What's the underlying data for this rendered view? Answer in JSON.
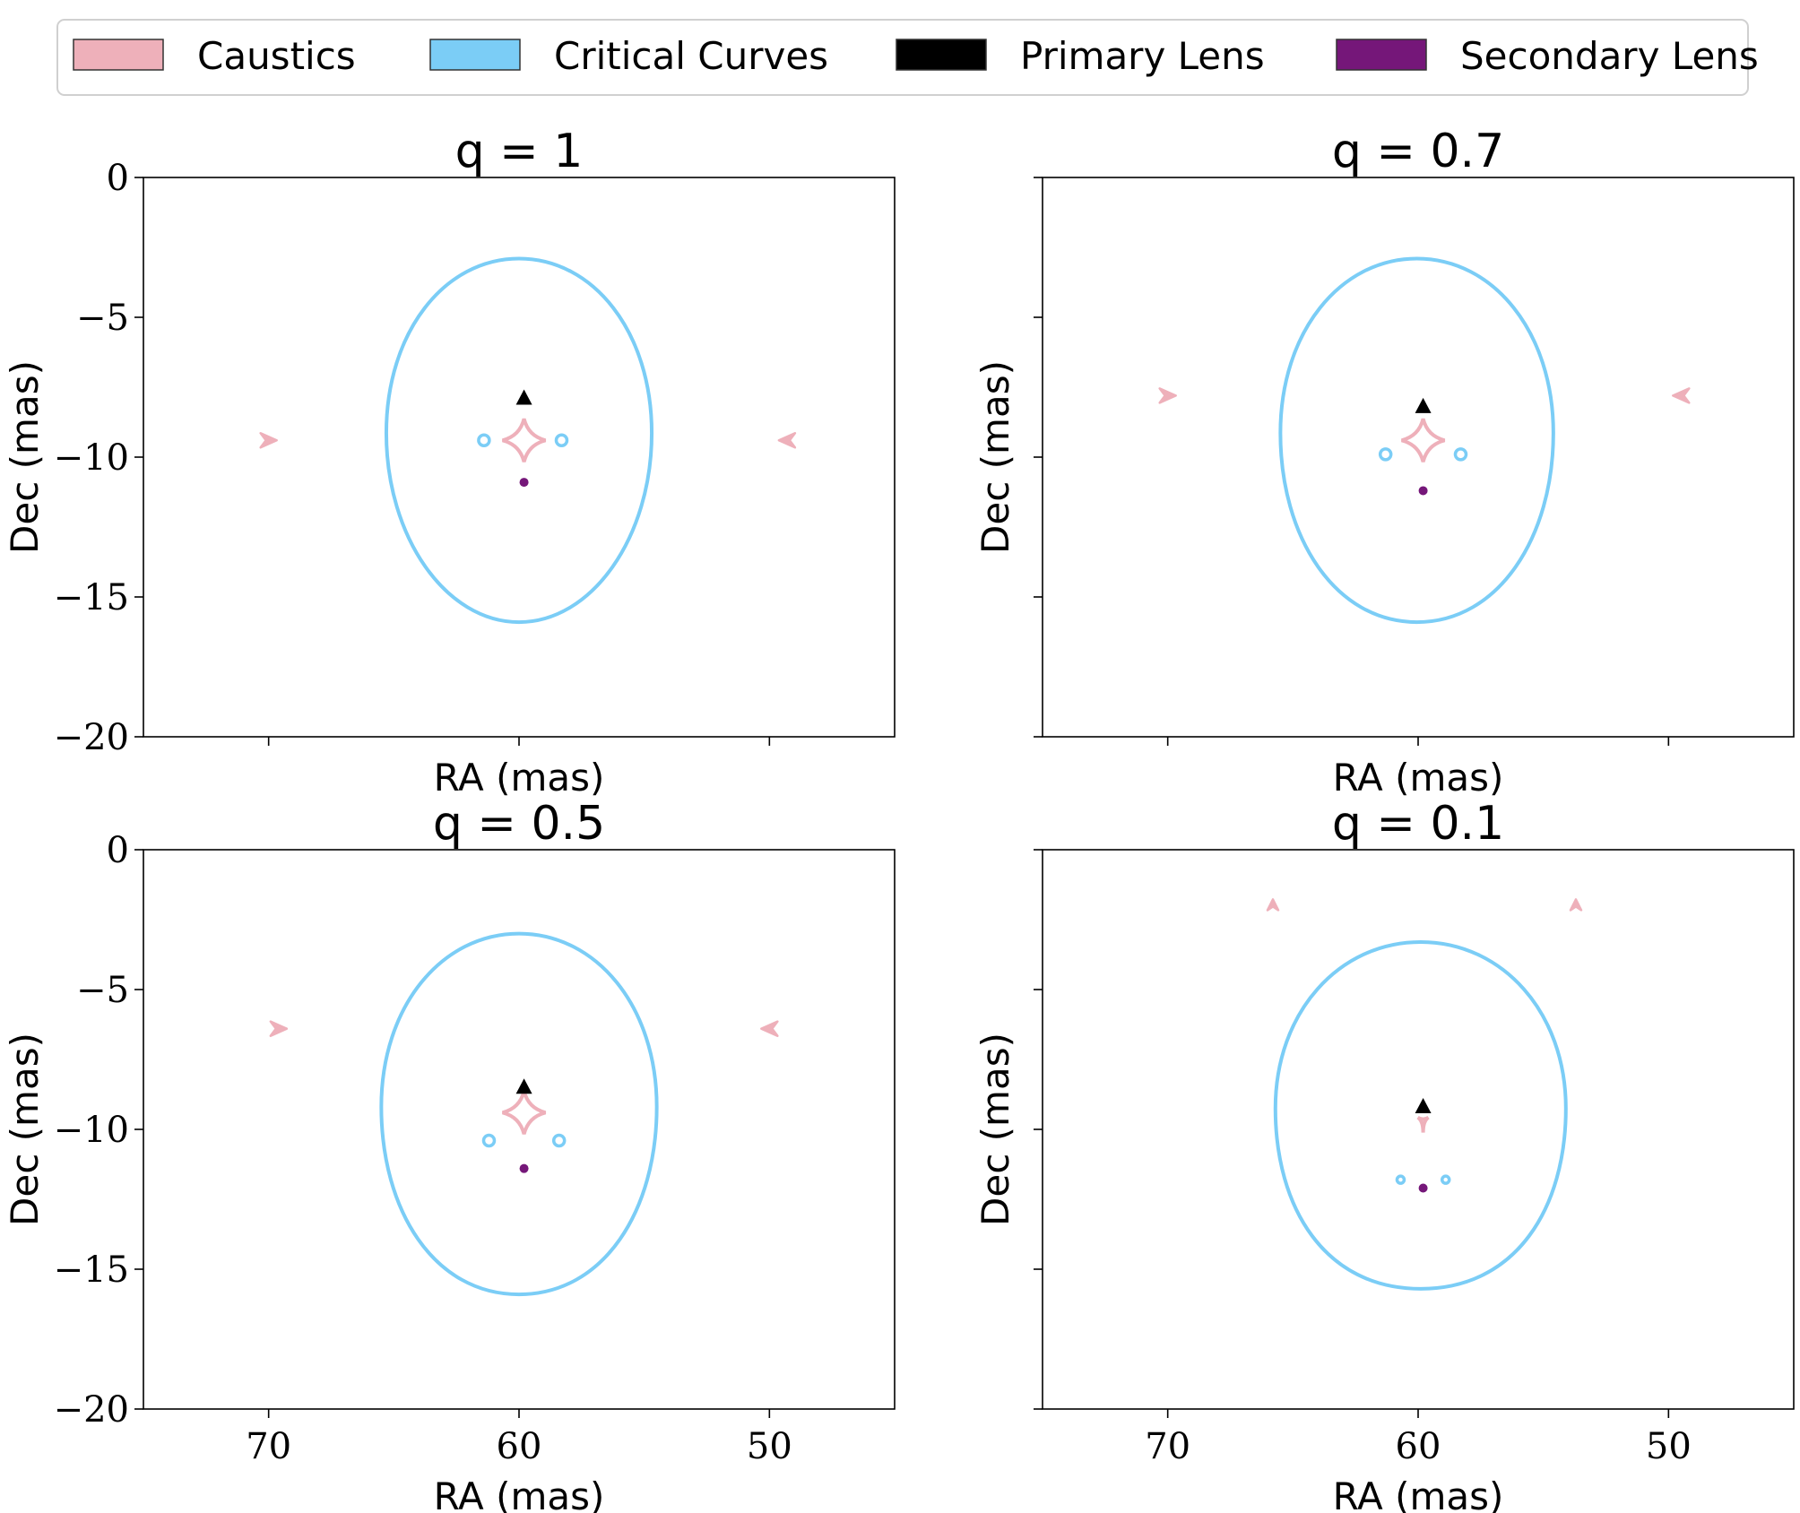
{
  "legend": {
    "items": [
      {
        "label": "Caustics",
        "color": "#EEB0BA",
        "kind": "caustics"
      },
      {
        "label": "Critical Curves",
        "color": "#7BCDF6",
        "kind": "critical"
      },
      {
        "label": "Primary Lens",
        "color": "#000000",
        "kind": "primary"
      },
      {
        "label": "Secondary Lens",
        "color": "#751779",
        "kind": "secondary"
      }
    ]
  },
  "chart_data": [
    {
      "type": "scatter",
      "title": "q = 1",
      "xlabel": "RA (mas)",
      "ylabel": "Dec (mas)",
      "xlim": [
        75,
        45
      ],
      "ylim": [
        -20,
        0
      ],
      "xticks": [
        70,
        60,
        50
      ],
      "yticks": [
        0,
        -5,
        -10,
        -15,
        -20
      ],
      "show_xticklabels": false,
      "show_yticklabels": true,
      "primary_lens": [
        59.8,
        -7.9
      ],
      "secondary_lens": [
        59.8,
        -10.9
      ],
      "critical_curve": {
        "x_range": [
          54.7,
          65.3
        ],
        "y_range": [
          -15.9,
          -2.9
        ],
        "lower_width_ratio": 0.55
      },
      "critical_small": [
        [
          61.4,
          -9.4
        ],
        [
          58.3,
          -9.4
        ]
      ],
      "caustic_central": [
        59.8,
        -9.4
      ],
      "caustics_outer": [
        {
          "x": 70.0,
          "y": -9.4,
          "dir": "left"
        },
        {
          "x": 49.3,
          "y": -9.4,
          "dir": "right"
        }
      ]
    },
    {
      "type": "scatter",
      "title": "q = 0.7",
      "xlabel": "RA (mas)",
      "ylabel": "Dec (mas)",
      "xlim": [
        75,
        45
      ],
      "ylim": [
        -20,
        0
      ],
      "xticks": [
        70,
        60,
        50
      ],
      "yticks": [
        0,
        -5,
        -10,
        -15,
        -20
      ],
      "show_xticklabels": false,
      "show_yticklabels": false,
      "primary_lens": [
        59.8,
        -8.2
      ],
      "secondary_lens": [
        59.8,
        -11.2
      ],
      "critical_curve": {
        "x_range": [
          54.6,
          65.5
        ],
        "y_range": [
          -15.9,
          -2.9
        ],
        "lower_width_ratio": 0.6
      },
      "critical_small": [
        [
          61.3,
          -9.9
        ],
        [
          58.3,
          -9.9
        ]
      ],
      "caustic_central": [
        59.8,
        -9.4
      ],
      "caustics_outer": [
        {
          "x": 70.0,
          "y": -7.8,
          "dir": "left"
        },
        {
          "x": 49.5,
          "y": -7.8,
          "dir": "right"
        }
      ]
    },
    {
      "type": "scatter",
      "title": "q = 0.5",
      "xlabel": "RA (mas)",
      "ylabel": "Dec (mas)",
      "xlim": [
        75,
        45
      ],
      "ylim": [
        -20,
        0
      ],
      "xticks": [
        70,
        60,
        50
      ],
      "yticks": [
        0,
        -5,
        -10,
        -15,
        -20
      ],
      "show_xticklabels": true,
      "show_yticklabels": true,
      "primary_lens": [
        59.8,
        -8.5
      ],
      "secondary_lens": [
        59.8,
        -11.4
      ],
      "critical_curve": {
        "x_range": [
          54.5,
          65.5
        ],
        "y_range": [
          -15.9,
          -3.0
        ],
        "lower_width_ratio": 0.62
      },
      "critical_small": [
        [
          61.2,
          -10.4
        ],
        [
          58.4,
          -10.4
        ]
      ],
      "caustic_central": [
        59.8,
        -9.4
      ],
      "caustics_outer": [
        {
          "x": 69.6,
          "y": -6.4,
          "dir": "left"
        },
        {
          "x": 50.0,
          "y": -6.4,
          "dir": "right"
        }
      ]
    },
    {
      "type": "scatter",
      "title": "q = 0.1",
      "xlabel": "RA (mas)",
      "ylabel": "Dec (mas)",
      "xlim": [
        75,
        45
      ],
      "ylim": [
        -20,
        0
      ],
      "xticks": [
        70,
        60,
        50
      ],
      "yticks": [
        0,
        -5,
        -10,
        -15,
        -20
      ],
      "show_xticklabels": true,
      "show_yticklabels": false,
      "primary_lens": [
        59.8,
        -9.2
      ],
      "secondary_lens": [
        59.8,
        -12.1
      ],
      "critical_curve": {
        "x_range": [
          54.1,
          65.7
        ],
        "y_range": [
          -15.7,
          -3.3
        ],
        "lower_width_ratio": 0.66
      },
      "critical_small": [
        [
          60.7,
          -11.8
        ],
        [
          58.9,
          -11.8
        ]
      ],
      "caustic_central": [
        59.8,
        -9.7
      ],
      "caustics_outer": [
        {
          "x": 65.8,
          "y": -2.0,
          "dir": "down"
        },
        {
          "x": 53.7,
          "y": -2.0,
          "dir": "down"
        }
      ]
    }
  ]
}
